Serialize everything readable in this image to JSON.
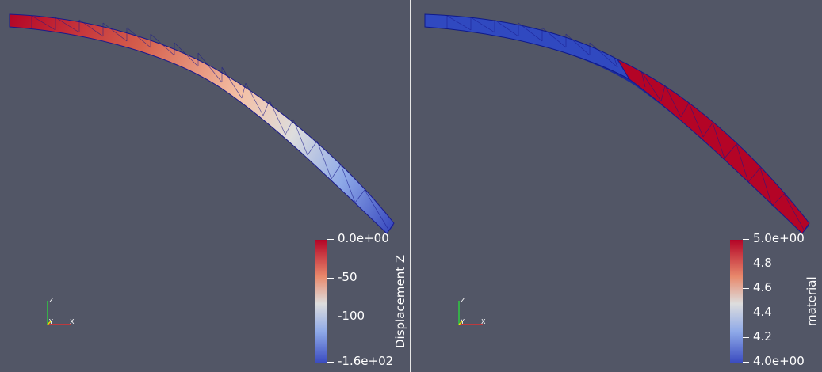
{
  "views": [
    {
      "id": "left",
      "colorbar": {
        "title": "Displacement Z",
        "labels": [
          "0.0e+00",
          "-50",
          "-100",
          "-1.6e+02"
        ]
      },
      "axes": {
        "z": "Z",
        "y": "Y",
        "x": "X"
      }
    },
    {
      "id": "right",
      "colorbar": {
        "title": "material",
        "labels": [
          "5.0e+00",
          "4.8",
          "4.6",
          "4.4",
          "4.2",
          "4.0e+00"
        ]
      },
      "axes": {
        "z": "Z",
        "y": "Y",
        "x": "X"
      }
    }
  ],
  "colors": {
    "background": "#525666",
    "colormap_high": "#b40426",
    "colormap_mid": "#dddddd",
    "colormap_low": "#3b4cc0",
    "mesh_edges": "#1a1a8c"
  }
}
